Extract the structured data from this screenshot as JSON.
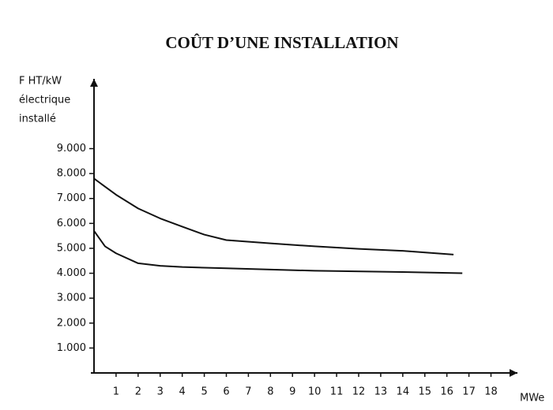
{
  "chart_data": {
    "type": "line",
    "title": "COÛT D’UNE INSTALLATION",
    "y_label": [
      "F HT/kW",
      "électrique",
      "installé"
    ],
    "x_label": "MWe",
    "xlim": [
      0,
      19.2
    ],
    "ylim": [
      0,
      11800
    ],
    "xticks": [
      1,
      2,
      3,
      4,
      5,
      6,
      7,
      8,
      9,
      10,
      11,
      12,
      13,
      14,
      15,
      16,
      17,
      18
    ],
    "yticks": [
      {
        "value": 1000,
        "label": "1.000"
      },
      {
        "value": 2000,
        "label": "2.000"
      },
      {
        "value": 3000,
        "label": "3.000"
      },
      {
        "value": 4000,
        "label": "4.000"
      },
      {
        "value": 5000,
        "label": "5.000"
      },
      {
        "value": 6000,
        "label": "6.000"
      },
      {
        "value": 7000,
        "label": "7.000"
      },
      {
        "value": 8000,
        "label": "8.000"
      },
      {
        "value": 9000,
        "label": "9.000"
      }
    ],
    "series": [
      {
        "color": "#111111",
        "x": [
          0,
          1,
          2,
          3,
          4,
          5,
          6,
          8,
          10,
          12,
          14,
          16.3
        ],
        "values": [
          7800,
          7150,
          6600,
          6200,
          5870,
          5550,
          5330,
          5200,
          5080,
          4980,
          4900,
          4750
        ]
      },
      {
        "color": "#111111",
        "x": [
          0,
          0.5,
          1,
          2,
          3,
          4,
          6,
          10,
          14,
          16.7
        ],
        "values": [
          5700,
          5080,
          4800,
          4400,
          4300,
          4250,
          4200,
          4100,
          4050,
          4000
        ]
      }
    ]
  }
}
